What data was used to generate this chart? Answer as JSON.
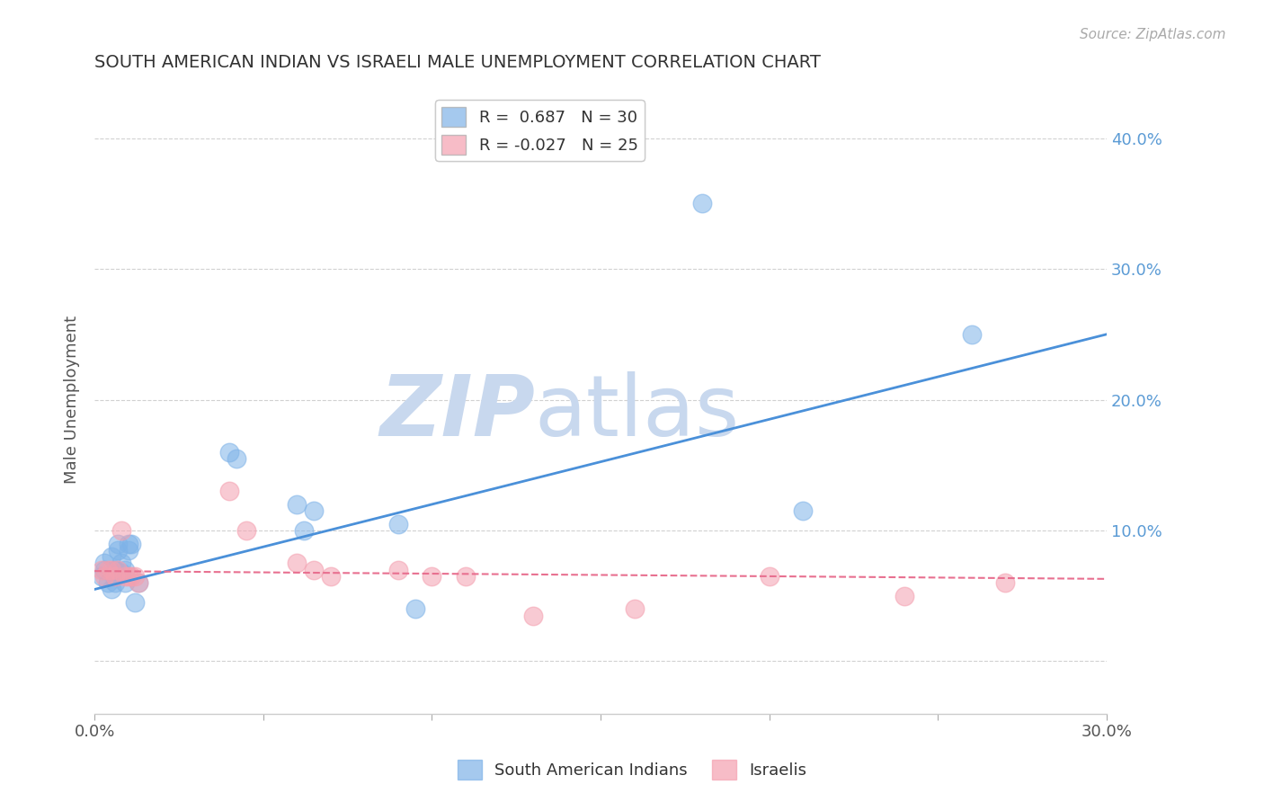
{
  "title": "SOUTH AMERICAN INDIAN VS ISRAELI MALE UNEMPLOYMENT CORRELATION CHART",
  "source": "Source: ZipAtlas.com",
  "ylabel_label": "Male Unemployment",
  "right_yticks": [
    0.0,
    0.1,
    0.2,
    0.3,
    0.4
  ],
  "right_ytick_labels": [
    "",
    "10.0%",
    "20.0%",
    "30.0%",
    "40.0%"
  ],
  "xlim": [
    0.0,
    0.3
  ],
  "ylim": [
    -0.04,
    0.44
  ],
  "legend_entries": [
    {
      "label": "R =  0.687   N = 30",
      "color": "#7fb3e8"
    },
    {
      "label": "R = -0.027   N = 25",
      "color": "#f4a0b0"
    }
  ],
  "blue_scatter_x": [
    0.002,
    0.003,
    0.003,
    0.004,
    0.005,
    0.005,
    0.006,
    0.006,
    0.006,
    0.007,
    0.007,
    0.008,
    0.008,
    0.009,
    0.009,
    0.01,
    0.01,
    0.011,
    0.012,
    0.013,
    0.04,
    0.042,
    0.06,
    0.062,
    0.065,
    0.09,
    0.095,
    0.18,
    0.21,
    0.26
  ],
  "blue_scatter_y": [
    0.065,
    0.07,
    0.075,
    0.06,
    0.055,
    0.08,
    0.07,
    0.065,
    0.06,
    0.085,
    0.09,
    0.075,
    0.068,
    0.07,
    0.06,
    0.09,
    0.085,
    0.09,
    0.045,
    0.06,
    0.16,
    0.155,
    0.12,
    0.1,
    0.115,
    0.105,
    0.04,
    0.35,
    0.115,
    0.25
  ],
  "pink_scatter_x": [
    0.002,
    0.003,
    0.004,
    0.005,
    0.006,
    0.007,
    0.008,
    0.009,
    0.01,
    0.011,
    0.012,
    0.013,
    0.04,
    0.045,
    0.06,
    0.065,
    0.07,
    0.09,
    0.1,
    0.11,
    0.13,
    0.16,
    0.2,
    0.24,
    0.27
  ],
  "pink_scatter_y": [
    0.07,
    0.065,
    0.07,
    0.07,
    0.065,
    0.07,
    0.1,
    0.065,
    0.065,
    0.065,
    0.065,
    0.06,
    0.13,
    0.1,
    0.075,
    0.07,
    0.065,
    0.07,
    0.065,
    0.065,
    0.035,
    0.04,
    0.065,
    0.05,
    0.06
  ],
  "blue_line_x": [
    0.0,
    0.3
  ],
  "blue_line_y": [
    0.055,
    0.25
  ],
  "pink_line_x": [
    0.0,
    0.3
  ],
  "pink_line_y": [
    0.069,
    0.063
  ],
  "watermark_zip": "ZIP",
  "watermark_atlas": "atlas",
  "watermark_color_zip": "#c8d8ee",
  "watermark_color_atlas": "#c8d8ee",
  "background_color": "#ffffff",
  "grid_color": "#cccccc",
  "title_color": "#333333",
  "axis_color": "#555555",
  "blue_color": "#7fb3e8",
  "pink_color": "#f4a0b0",
  "blue_line_color": "#4a90d9",
  "pink_line_color": "#e87090",
  "bottom_legend_labels": [
    "South American Indians",
    "Israelis"
  ]
}
